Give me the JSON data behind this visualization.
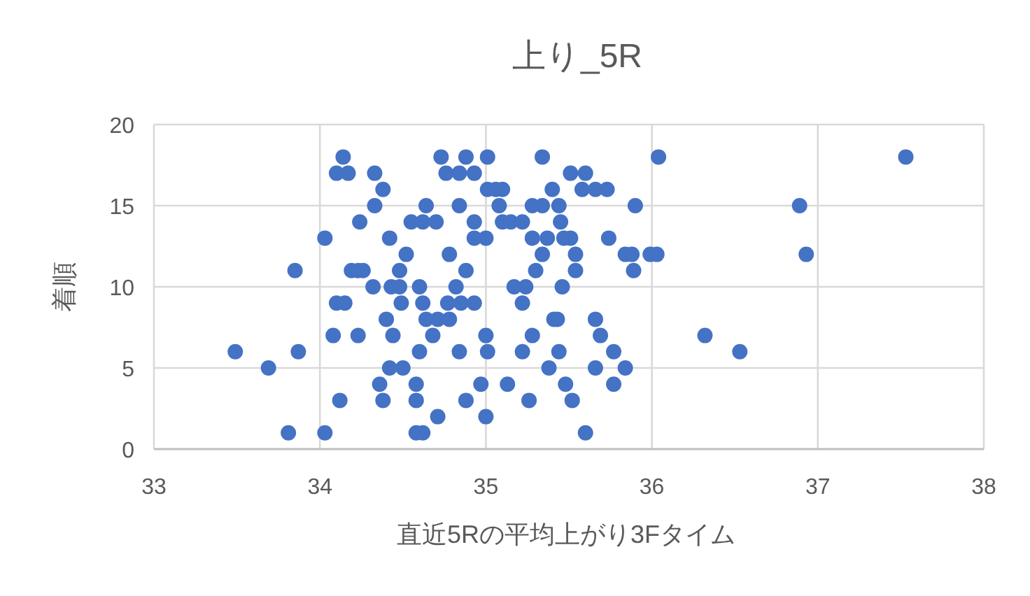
{
  "chart_data": {
    "type": "scatter",
    "title": "上り_5R",
    "xlabel": "直近5Rの平均上がり3Fタイム",
    "ylabel": "着順",
    "xlim": [
      33,
      38
    ],
    "xticks": [
      33,
      34,
      35,
      36,
      37,
      38
    ],
    "ylim": [
      0,
      20
    ],
    "yticks": [
      0,
      5,
      10,
      15,
      20
    ],
    "grid": true,
    "marker": "circle",
    "series": [
      {
        "color": "#4472c4",
        "x": [
          34.14,
          34.73,
          34.88,
          35.01,
          35.34,
          36.04,
          37.53,
          34.1,
          34.17,
          34.33,
          34.76,
          34.84,
          34.93,
          35.51,
          35.6,
          34.38,
          35.01,
          35.06,
          35.1,
          35.4,
          35.58,
          35.66,
          35.73,
          34.33,
          34.64,
          34.84,
          35.08,
          35.28,
          35.34,
          35.44,
          35.9,
          36.89,
          34.24,
          34.55,
          34.62,
          34.7,
          34.93,
          35.1,
          35.15,
          35.22,
          35.45,
          34.03,
          34.42,
          34.93,
          35.0,
          35.28,
          35.37,
          35.47,
          35.51,
          35.74,
          34.52,
          34.78,
          35.34,
          35.54,
          35.84,
          35.88,
          35.99,
          36.03,
          36.93,
          33.85,
          34.19,
          34.23,
          34.26,
          34.48,
          34.88,
          35.3,
          35.54,
          35.89,
          34.32,
          34.43,
          34.48,
          34.6,
          34.82,
          35.17,
          35.24,
          35.46,
          34.1,
          34.15,
          34.49,
          34.62,
          34.77,
          34.85,
          34.93,
          35.22,
          34.4,
          34.64,
          34.71,
          34.78,
          35.41,
          35.43,
          35.66,
          34.08,
          34.23,
          34.44,
          34.68,
          35.0,
          35.28,
          35.69,
          36.32,
          33.49,
          33.87,
          34.6,
          34.84,
          35.01,
          35.22,
          35.44,
          35.77,
          36.53,
          33.69,
          34.42,
          34.5,
          35.38,
          35.66,
          35.84,
          34.36,
          34.58,
          34.97,
          35.13,
          35.48,
          35.77,
          34.12,
          34.38,
          34.58,
          34.88,
          35.26,
          35.52,
          34.71,
          35.0,
          33.81,
          34.03,
          34.58,
          34.62,
          35.6
        ],
        "values": [
          18,
          18,
          18,
          18,
          18,
          18,
          18,
          17,
          17,
          17,
          17,
          17,
          17,
          17,
          17,
          16,
          16,
          16,
          16,
          16,
          16,
          16,
          16,
          15,
          15,
          15,
          15,
          15,
          15,
          15,
          15,
          15,
          14,
          14,
          14,
          14,
          14,
          14,
          14,
          14,
          14,
          13,
          13,
          13,
          13,
          13,
          13,
          13,
          13,
          13,
          12,
          12,
          12,
          12,
          12,
          12,
          12,
          12,
          12,
          11,
          11,
          11,
          11,
          11,
          11,
          11,
          11,
          11,
          10,
          10,
          10,
          10,
          10,
          10,
          10,
          10,
          9,
          9,
          9,
          9,
          9,
          9,
          9,
          9,
          8,
          8,
          8,
          8,
          8,
          8,
          8,
          7,
          7,
          7,
          7,
          7,
          7,
          7,
          7,
          6,
          6,
          6,
          6,
          6,
          6,
          6,
          6,
          6,
          5,
          5,
          5,
          5,
          5,
          5,
          4,
          4,
          4,
          4,
          4,
          4,
          3,
          3,
          3,
          3,
          3,
          3,
          2,
          2,
          1,
          1,
          1,
          1,
          1
        ]
      }
    ]
  }
}
